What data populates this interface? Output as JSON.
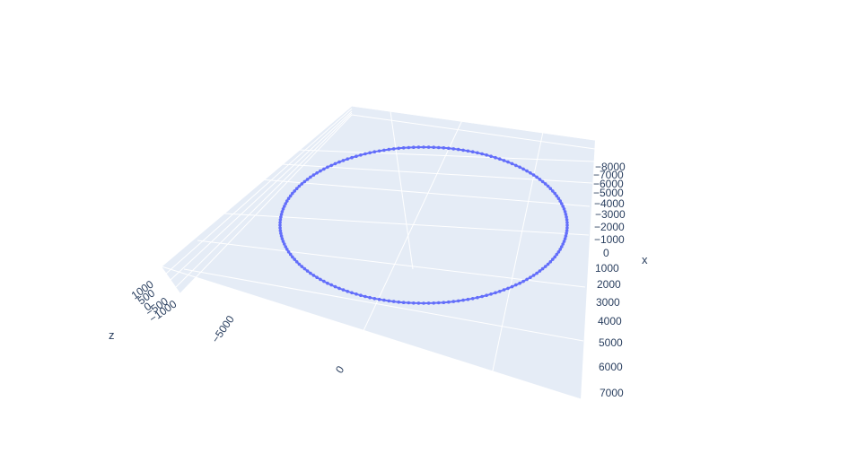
{
  "chart_data": {
    "type": "scatter3d",
    "mode": "lines+markers",
    "title": "",
    "shape": "circle",
    "center": {
      "x": 0,
      "y": 0,
      "z": 0
    },
    "radius": 7000,
    "points": 180,
    "z_value": 0,
    "axes": {
      "x": {
        "title": "x",
        "ticks": [
          "−8000",
          "−7000",
          "−6000",
          "−5000",
          "−4000",
          "−3000",
          "−2000",
          "−1000",
          "0",
          "1000",
          "2000",
          "3000",
          "4000",
          "5000",
          "6000",
          "7000"
        ],
        "range": [
          -8000,
          7000
        ]
      },
      "y": {
        "title": "",
        "ticks": [
          "−5000",
          "0"
        ],
        "range": [
          -8000,
          8000
        ]
      },
      "z": {
        "title": "z",
        "ticks": [
          "1000",
          "500",
          "0",
          "−500",
          "−1000"
        ],
        "range": [
          -1000,
          1000
        ]
      }
    },
    "grid": true,
    "colors": {
      "line": "#636efa",
      "pane": "#e5ecf6",
      "grid": "#ffffff",
      "text": "#2a3f5f"
    }
  }
}
